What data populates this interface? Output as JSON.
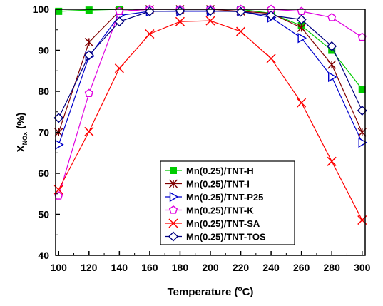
{
  "chart_data": {
    "type": "line",
    "xlabel": "Temperature (°C)",
    "ylabel": "X",
    "ylabel_subscript": "NOx",
    "ylabel_unit": "(%)",
    "xlim": [
      98,
      302
    ],
    "ylim": [
      40,
      100
    ],
    "x_ticks": [
      100,
      120,
      140,
      160,
      180,
      200,
      220,
      240,
      260,
      280,
      300
    ],
    "y_ticks": [
      40,
      50,
      60,
      70,
      80,
      90,
      100
    ],
    "grid": false,
    "legend_position": "bottom-center",
    "x": [
      100,
      120,
      140,
      160,
      180,
      200,
      220,
      240,
      260,
      280,
      300
    ],
    "series": [
      {
        "name": "Mn(0.25)/TNT-H",
        "color": "#00cc00",
        "marker": "square-filled",
        "values": [
          99.5,
          99.8,
          100,
          100,
          100,
          100,
          100,
          99,
          96,
          90,
          80.5
        ]
      },
      {
        "name": "Mn(0.25)/TNT-I",
        "color": "#800000",
        "marker": "asterisk",
        "values": [
          70,
          92,
          99.5,
          100,
          100,
          100,
          99.5,
          99,
          95.5,
          86.5,
          70
        ]
      },
      {
        "name": "Mn(0.25)/TNT-P25",
        "color": "#0000cc",
        "marker": "triangle-right",
        "values": [
          67,
          88.5,
          98.5,
          99.5,
          99.5,
          99.5,
          99.5,
          98,
          93,
          83.5,
          67.5
        ]
      },
      {
        "name": "Mn(0.25)/TNT-K",
        "color": "#e000e0",
        "marker": "pentagon",
        "values": [
          54.5,
          79.5,
          99.5,
          100,
          100,
          100,
          100,
          100,
          99.5,
          98,
          93.2
        ]
      },
      {
        "name": "Mn(0.25)/TNT-SA",
        "color": "#ff0000",
        "marker": "x",
        "values": [
          56,
          70.2,
          85.6,
          94,
          97,
          97.2,
          94.6,
          88,
          77.2,
          62.9,
          48.6
        ]
      },
      {
        "name": "Mn(0.25)/TNT-TOS",
        "color": "#000080",
        "marker": "diamond",
        "values": [
          73.5,
          88.8,
          97,
          99.5,
          99.6,
          99.6,
          99.4,
          98.5,
          97.5,
          91,
          75.3
        ]
      }
    ]
  }
}
